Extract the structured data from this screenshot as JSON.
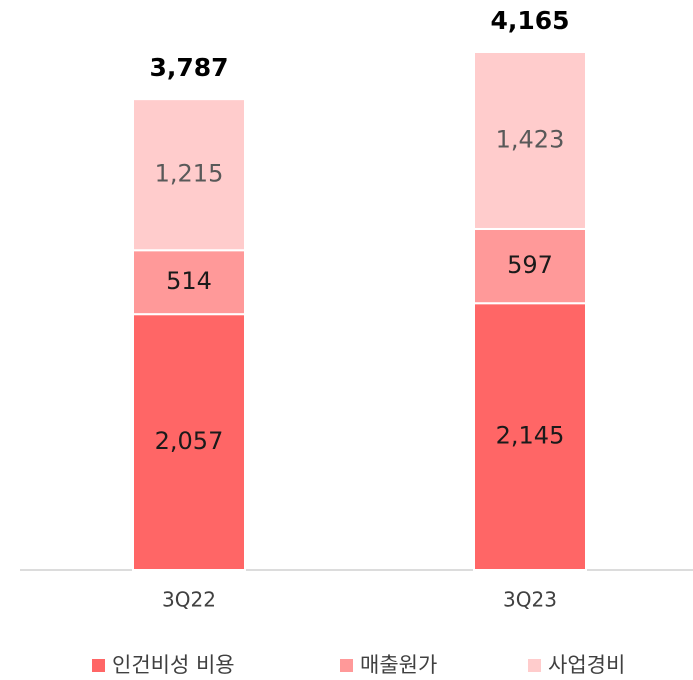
{
  "chart_data": {
    "type": "stacked_bar",
    "categories": [
      "3Q22",
      "3Q23"
    ],
    "series": [
      {
        "name": "인건비성 비용",
        "color": "#ff6666",
        "label_color": "#1a1a1a",
        "values": [
          2057,
          2145
        ],
        "value_labels": [
          "2,057",
          "2,145"
        ]
      },
      {
        "name": "매출원가",
        "color": "#ff9999",
        "label_color": "#1a1a1a",
        "values": [
          514,
          597
        ],
        "value_labels": [
          "514",
          "597"
        ]
      },
      {
        "name": "사업경비",
        "color": "#ffcccc",
        "label_color": "#595959",
        "values": [
          1215,
          1423
        ],
        "value_labels": [
          "1,215",
          "1,423"
        ]
      }
    ],
    "totals": [
      3787,
      4165
    ],
    "total_labels": [
      "3,787",
      "4,165"
    ],
    "legend": "bottom"
  }
}
